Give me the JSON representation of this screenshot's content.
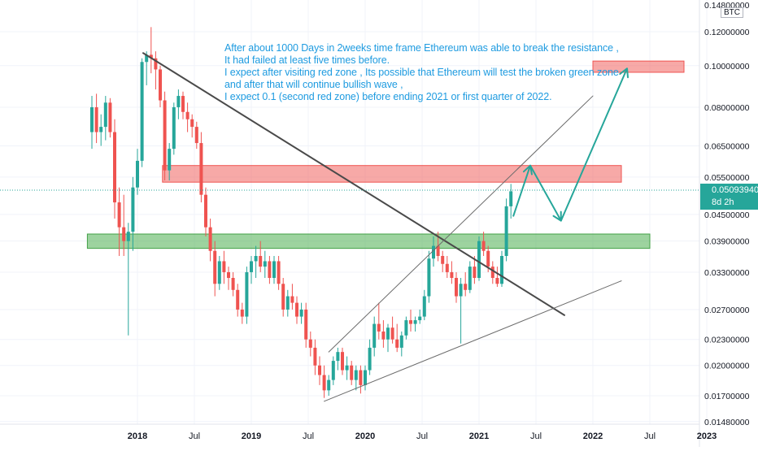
{
  "chart_data": {
    "type": "candlestick",
    "title": "",
    "quote_currency": "BTC",
    "y_scale": "log",
    "ylim": [
      0.0148,
      0.14
    ],
    "y_ticks": [
      {
        "value": 0.148,
        "label": "0.14800000"
      },
      {
        "value": 0.12,
        "label": "0.12000000"
      },
      {
        "value": 0.1,
        "label": "0.10000000"
      },
      {
        "value": 0.08,
        "label": "0.08000000"
      },
      {
        "value": 0.065,
        "label": "0.06500000"
      },
      {
        "value": 0.055,
        "label": "0.05500000"
      },
      {
        "value": 0.045,
        "label": "0.04500000"
      },
      {
        "value": 0.039,
        "label": "0.03900000"
      },
      {
        "value": 0.033,
        "label": "0.03300000"
      },
      {
        "value": 0.027,
        "label": "0.02700000"
      },
      {
        "value": 0.023,
        "label": "0.02300000"
      },
      {
        "value": 0.02,
        "label": "0.02000000"
      },
      {
        "value": 0.017,
        "label": "0.01700000"
      },
      {
        "value": 0.0148,
        "label": "0.01480000"
      }
    ],
    "x_ticks": [
      {
        "t": 2018.0,
        "label": "2018",
        "bold": true
      },
      {
        "t": 2018.5,
        "label": "Jul",
        "bold": false
      },
      {
        "t": 2019.0,
        "label": "2019",
        "bold": true
      },
      {
        "t": 2019.5,
        "label": "Jul",
        "bold": false
      },
      {
        "t": 2020.0,
        "label": "2020",
        "bold": true
      },
      {
        "t": 2020.5,
        "label": "Jul",
        "bold": false
      },
      {
        "t": 2021.0,
        "label": "2021",
        "bold": true
      },
      {
        "t": 2021.5,
        "label": "Jul",
        "bold": false
      },
      {
        "t": 2022.0,
        "label": "2022",
        "bold": true
      },
      {
        "t": 2022.5,
        "label": "Jul",
        "bold": false
      },
      {
        "t": 2023.0,
        "label": "2023",
        "bold": true
      }
    ],
    "last_price": {
      "value": 0.0509394,
      "label": "0.05093940",
      "countdown": "8d 2h"
    },
    "colors": {
      "up": "#26a69a",
      "down": "#ef5350"
    },
    "candles": [
      {
        "t": 2017.6,
        "o": 0.07,
        "h": 0.085,
        "l": 0.064,
        "c": 0.08
      },
      {
        "t": 2017.64,
        "o": 0.08,
        "h": 0.086,
        "l": 0.066,
        "c": 0.07
      },
      {
        "t": 2017.68,
        "o": 0.07,
        "h": 0.077,
        "l": 0.065,
        "c": 0.072
      },
      {
        "t": 2017.72,
        "o": 0.072,
        "h": 0.085,
        "l": 0.067,
        "c": 0.082
      },
      {
        "t": 2017.76,
        "o": 0.082,
        "h": 0.084,
        "l": 0.068,
        "c": 0.07
      },
      {
        "t": 2017.8,
        "o": 0.07,
        "h": 0.075,
        "l": 0.044,
        "c": 0.048
      },
      {
        "t": 2017.84,
        "o": 0.048,
        "h": 0.052,
        "l": 0.036,
        "c": 0.042
      },
      {
        "t": 2017.88,
        "o": 0.042,
        "h": 0.05,
        "l": 0.036,
        "c": 0.039
      },
      {
        "t": 2017.92,
        "o": 0.039,
        "h": 0.043,
        "l": 0.0235,
        "c": 0.041
      },
      {
        "t": 2017.96,
        "o": 0.041,
        "h": 0.055,
        "l": 0.037,
        "c": 0.052
      },
      {
        "t": 2018.0,
        "o": 0.052,
        "h": 0.064,
        "l": 0.05,
        "c": 0.06
      },
      {
        "t": 2018.04,
        "o": 0.06,
        "h": 0.104,
        "l": 0.058,
        "c": 0.102
      },
      {
        "t": 2018.08,
        "o": 0.102,
        "h": 0.108,
        "l": 0.09,
        "c": 0.106
      },
      {
        "t": 2018.12,
        "o": 0.106,
        "h": 0.123,
        "l": 0.096,
        "c": 0.104
      },
      {
        "t": 2018.16,
        "o": 0.104,
        "h": 0.108,
        "l": 0.088,
        "c": 0.098
      },
      {
        "t": 2018.2,
        "o": 0.098,
        "h": 0.1,
        "l": 0.08,
        "c": 0.083
      },
      {
        "t": 2018.24,
        "o": 0.083,
        "h": 0.087,
        "l": 0.054,
        "c": 0.057
      },
      {
        "t": 2018.28,
        "o": 0.057,
        "h": 0.066,
        "l": 0.054,
        "c": 0.064
      },
      {
        "t": 2018.32,
        "o": 0.064,
        "h": 0.082,
        "l": 0.062,
        "c": 0.08
      },
      {
        "t": 2018.36,
        "o": 0.08,
        "h": 0.088,
        "l": 0.075,
        "c": 0.085
      },
      {
        "t": 2018.4,
        "o": 0.085,
        "h": 0.087,
        "l": 0.075,
        "c": 0.078
      },
      {
        "t": 2018.44,
        "o": 0.078,
        "h": 0.082,
        "l": 0.07,
        "c": 0.075
      },
      {
        "t": 2018.48,
        "o": 0.075,
        "h": 0.077,
        "l": 0.068,
        "c": 0.072
      },
      {
        "t": 2018.52,
        "o": 0.072,
        "h": 0.074,
        "l": 0.064,
        "c": 0.066
      },
      {
        "t": 2018.56,
        "o": 0.066,
        "h": 0.07,
        "l": 0.048,
        "c": 0.05
      },
      {
        "t": 2018.6,
        "o": 0.05,
        "h": 0.052,
        "l": 0.04,
        "c": 0.042
      },
      {
        "t": 2018.64,
        "o": 0.042,
        "h": 0.044,
        "l": 0.035,
        "c": 0.037
      },
      {
        "t": 2018.68,
        "o": 0.037,
        "h": 0.039,
        "l": 0.029,
        "c": 0.031
      },
      {
        "t": 2018.72,
        "o": 0.031,
        "h": 0.036,
        "l": 0.03,
        "c": 0.035
      },
      {
        "t": 2018.76,
        "o": 0.035,
        "h": 0.037,
        "l": 0.031,
        "c": 0.033
      },
      {
        "t": 2018.8,
        "o": 0.033,
        "h": 0.034,
        "l": 0.03,
        "c": 0.032
      },
      {
        "t": 2018.84,
        "o": 0.032,
        "h": 0.033,
        "l": 0.029,
        "c": 0.03
      },
      {
        "t": 2018.88,
        "o": 0.03,
        "h": 0.031,
        "l": 0.026,
        "c": 0.027
      },
      {
        "t": 2018.92,
        "o": 0.027,
        "h": 0.028,
        "l": 0.025,
        "c": 0.026
      },
      {
        "t": 2018.96,
        "o": 0.026,
        "h": 0.034,
        "l": 0.025,
        "c": 0.033
      },
      {
        "t": 2019.0,
        "o": 0.033,
        "h": 0.036,
        "l": 0.031,
        "c": 0.035
      },
      {
        "t": 2019.04,
        "o": 0.035,
        "h": 0.038,
        "l": 0.032,
        "c": 0.036
      },
      {
        "t": 2019.08,
        "o": 0.036,
        "h": 0.039,
        "l": 0.033,
        "c": 0.034
      },
      {
        "t": 2019.12,
        "o": 0.034,
        "h": 0.037,
        "l": 0.032,
        "c": 0.035
      },
      {
        "t": 2019.16,
        "o": 0.035,
        "h": 0.036,
        "l": 0.031,
        "c": 0.032
      },
      {
        "t": 2019.2,
        "o": 0.032,
        "h": 0.036,
        "l": 0.031,
        "c": 0.035
      },
      {
        "t": 2019.24,
        "o": 0.035,
        "h": 0.036,
        "l": 0.03,
        "c": 0.031
      },
      {
        "t": 2019.28,
        "o": 0.031,
        "h": 0.032,
        "l": 0.026,
        "c": 0.027
      },
      {
        "t": 2019.32,
        "o": 0.027,
        "h": 0.03,
        "l": 0.026,
        "c": 0.029
      },
      {
        "t": 2019.36,
        "o": 0.029,
        "h": 0.031,
        "l": 0.027,
        "c": 0.028
      },
      {
        "t": 2019.4,
        "o": 0.028,
        "h": 0.029,
        "l": 0.025,
        "c": 0.026
      },
      {
        "t": 2019.44,
        "o": 0.026,
        "h": 0.028,
        "l": 0.025,
        "c": 0.027
      },
      {
        "t": 2019.48,
        "o": 0.027,
        "h": 0.028,
        "l": 0.022,
        "c": 0.023
      },
      {
        "t": 2019.52,
        "o": 0.023,
        "h": 0.024,
        "l": 0.021,
        "c": 0.022
      },
      {
        "t": 2019.56,
        "o": 0.022,
        "h": 0.023,
        "l": 0.019,
        "c": 0.02
      },
      {
        "t": 2019.6,
        "o": 0.02,
        "h": 0.021,
        "l": 0.018,
        "c": 0.019
      },
      {
        "t": 2019.64,
        "o": 0.019,
        "h": 0.02,
        "l": 0.0168,
        "c": 0.0175
      },
      {
        "t": 2019.68,
        "o": 0.0175,
        "h": 0.019,
        "l": 0.017,
        "c": 0.0185
      },
      {
        "t": 2019.72,
        "o": 0.0185,
        "h": 0.021,
        "l": 0.018,
        "c": 0.0205
      },
      {
        "t": 2019.76,
        "o": 0.0205,
        "h": 0.022,
        "l": 0.0195,
        "c": 0.0215
      },
      {
        "t": 2019.8,
        "o": 0.0215,
        "h": 0.022,
        "l": 0.019,
        "c": 0.0195
      },
      {
        "t": 2019.84,
        "o": 0.0195,
        "h": 0.021,
        "l": 0.0185,
        "c": 0.02
      },
      {
        "t": 2019.88,
        "o": 0.02,
        "h": 0.0205,
        "l": 0.018,
        "c": 0.0185
      },
      {
        "t": 2019.92,
        "o": 0.0185,
        "h": 0.02,
        "l": 0.0175,
        "c": 0.0195
      },
      {
        "t": 2019.96,
        "o": 0.0195,
        "h": 0.02,
        "l": 0.0172,
        "c": 0.018
      },
      {
        "t": 2020.0,
        "o": 0.018,
        "h": 0.02,
        "l": 0.0175,
        "c": 0.0195
      },
      {
        "t": 2020.04,
        "o": 0.0195,
        "h": 0.023,
        "l": 0.019,
        "c": 0.022
      },
      {
        "t": 2020.08,
        "o": 0.022,
        "h": 0.026,
        "l": 0.021,
        "c": 0.025
      },
      {
        "t": 2020.12,
        "o": 0.025,
        "h": 0.028,
        "l": 0.023,
        "c": 0.024
      },
      {
        "t": 2020.16,
        "o": 0.024,
        "h": 0.0255,
        "l": 0.022,
        "c": 0.023
      },
      {
        "t": 2020.2,
        "o": 0.023,
        "h": 0.025,
        "l": 0.0215,
        "c": 0.0245
      },
      {
        "t": 2020.24,
        "o": 0.0245,
        "h": 0.026,
        "l": 0.0225,
        "c": 0.023
      },
      {
        "t": 2020.28,
        "o": 0.023,
        "h": 0.025,
        "l": 0.0215,
        "c": 0.022
      },
      {
        "t": 2020.32,
        "o": 0.022,
        "h": 0.024,
        "l": 0.021,
        "c": 0.0235
      },
      {
        "t": 2020.36,
        "o": 0.0235,
        "h": 0.026,
        "l": 0.023,
        "c": 0.0255
      },
      {
        "t": 2020.4,
        "o": 0.0255,
        "h": 0.027,
        "l": 0.024,
        "c": 0.025
      },
      {
        "t": 2020.44,
        "o": 0.025,
        "h": 0.026,
        "l": 0.024,
        "c": 0.0255
      },
      {
        "t": 2020.48,
        "o": 0.0255,
        "h": 0.027,
        "l": 0.025,
        "c": 0.026
      },
      {
        "t": 2020.52,
        "o": 0.026,
        "h": 0.03,
        "l": 0.0255,
        "c": 0.029
      },
      {
        "t": 2020.56,
        "o": 0.029,
        "h": 0.037,
        "l": 0.028,
        "c": 0.0355
      },
      {
        "t": 2020.6,
        "o": 0.0355,
        "h": 0.04,
        "l": 0.034,
        "c": 0.038
      },
      {
        "t": 2020.64,
        "o": 0.038,
        "h": 0.041,
        "l": 0.035,
        "c": 0.036
      },
      {
        "t": 2020.68,
        "o": 0.036,
        "h": 0.037,
        "l": 0.033,
        "c": 0.0345
      },
      {
        "t": 2020.72,
        "o": 0.0345,
        "h": 0.036,
        "l": 0.032,
        "c": 0.033
      },
      {
        "t": 2020.76,
        "o": 0.033,
        "h": 0.035,
        "l": 0.031,
        "c": 0.032
      },
      {
        "t": 2020.8,
        "o": 0.032,
        "h": 0.033,
        "l": 0.028,
        "c": 0.029
      },
      {
        "t": 2020.84,
        "o": 0.029,
        "h": 0.032,
        "l": 0.0225,
        "c": 0.031
      },
      {
        "t": 2020.88,
        "o": 0.031,
        "h": 0.033,
        "l": 0.029,
        "c": 0.03
      },
      {
        "t": 2020.92,
        "o": 0.03,
        "h": 0.035,
        "l": 0.0295,
        "c": 0.034
      },
      {
        "t": 2020.96,
        "o": 0.034,
        "h": 0.036,
        "l": 0.031,
        "c": 0.032
      },
      {
        "t": 2021.0,
        "o": 0.032,
        "h": 0.04,
        "l": 0.0315,
        "c": 0.039
      },
      {
        "t": 2021.04,
        "o": 0.039,
        "h": 0.041,
        "l": 0.036,
        "c": 0.037
      },
      {
        "t": 2021.08,
        "o": 0.037,
        "h": 0.038,
        "l": 0.033,
        "c": 0.034
      },
      {
        "t": 2021.12,
        "o": 0.034,
        "h": 0.035,
        "l": 0.031,
        "c": 0.032
      },
      {
        "t": 2021.16,
        "o": 0.032,
        "h": 0.034,
        "l": 0.0305,
        "c": 0.031
      },
      {
        "t": 2021.2,
        "o": 0.031,
        "h": 0.037,
        "l": 0.0305,
        "c": 0.036
      },
      {
        "t": 2021.24,
        "o": 0.036,
        "h": 0.049,
        "l": 0.035,
        "c": 0.047
      },
      {
        "t": 2021.28,
        "o": 0.047,
        "h": 0.053,
        "l": 0.044,
        "c": 0.0509394
      }
    ],
    "zones": [
      {
        "name": "red zone",
        "color": "red",
        "t_start": 2018.22,
        "t_end": 2022.25,
        "y_low": 0.0535,
        "y_high": 0.0585
      },
      {
        "name": "green zone",
        "color": "green",
        "t_start": 2017.56,
        "t_end": 2022.5,
        "y_low": 0.0375,
        "y_high": 0.0405
      },
      {
        "name": "second red zone",
        "color": "red",
        "t_start": 2022.0,
        "t_end": 2022.8,
        "y_low": 0.0965,
        "y_high": 0.1025
      }
    ],
    "lines": [
      {
        "name": "resistance-trendline",
        "color": "#4a4a4a",
        "width": 2,
        "points": [
          {
            "t": 2018.05,
            "y": 0.107
          },
          {
            "t": 2021.75,
            "y": 0.0262
          }
        ]
      },
      {
        "name": "lower-channel-line",
        "color": "#6b6b6b",
        "width": 1,
        "points": [
          {
            "t": 2019.64,
            "y": 0.0165
          },
          {
            "t": 2022.25,
            "y": 0.0315
          }
        ]
      },
      {
        "name": "upper-channel-line",
        "color": "#6b6b6b",
        "width": 1,
        "points": [
          {
            "t": 2019.68,
            "y": 0.0215
          },
          {
            "t": 2022.0,
            "y": 0.085
          }
        ]
      }
    ],
    "projection": {
      "color": "#26a69a",
      "points": [
        {
          "t": 2021.3,
          "y": 0.0445
        },
        {
          "t": 2021.45,
          "y": 0.0585
        },
        {
          "t": 2021.72,
          "y": 0.0435
        },
        {
          "t": 2022.3,
          "y": 0.0985
        }
      ]
    },
    "annotation_lines": [
      "After about 1000 Days in 2weeks time frame Ethereum was able to break the resistance ,",
      "It had failed at least five times before.",
      " I expect after visiting red zone , Its possible that Ethereum will test the broken green zone",
      " and after that will continue bullish wave ,",
      " I expect 0.1 (second red zone) before ending 2021 or first quarter of 2022."
    ]
  }
}
